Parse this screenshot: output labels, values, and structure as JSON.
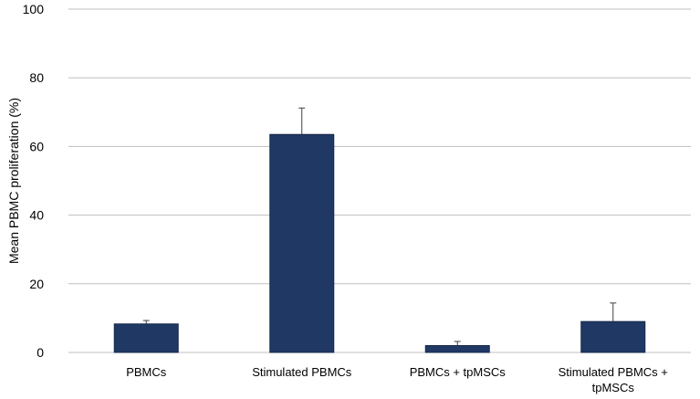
{
  "chart_data": {
    "type": "bar",
    "title": "",
    "xlabel": "",
    "ylabel": "Mean PBMC proliferation (%)",
    "ylim": [
      0,
      100
    ],
    "yticks": [
      "0",
      "20",
      "40",
      "60",
      "80",
      "100"
    ],
    "ytick_values": [
      0,
      20,
      40,
      60,
      80,
      100
    ],
    "grid": true,
    "legend": "none",
    "categories": [
      [
        "PBMCs"
      ],
      [
        "Stimulated PBMCs"
      ],
      [
        "PBMCs + tpMSCs"
      ],
      [
        "Stimulated PBMCs +",
        "tpMSCs"
      ]
    ],
    "series": [
      {
        "values": [
          8.3,
          63.5,
          2.0,
          9.0
        ],
        "error_plus": [
          1.0,
          7.7,
          1.2,
          5.4
        ]
      }
    ],
    "colors": {
      "bar": "#1f3864",
      "bar_edge": "#15284a",
      "grid": "#bfbfbf",
      "axis": "#bfbfbf",
      "error_bar": "#404040"
    }
  }
}
